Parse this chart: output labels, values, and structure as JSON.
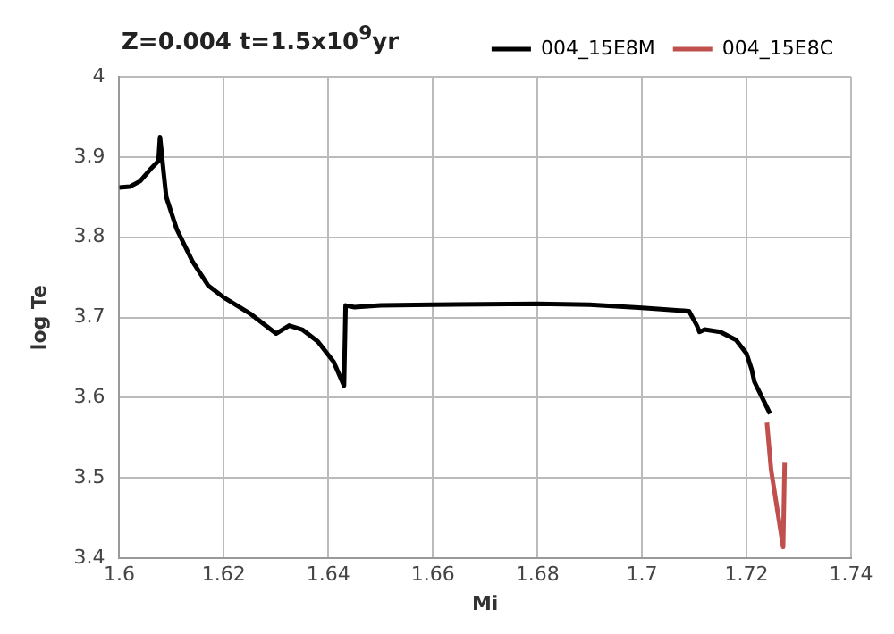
{
  "chart_data": {
    "type": "line",
    "title": "Z=0.004 t=1.5x10$^{9}$yr",
    "xlabel": "Mi",
    "ylabel": "log Te",
    "xlim": [
      1.6,
      1.74
    ],
    "xticks": [
      {
        "value": 1.6,
        "label": "1.6"
      },
      {
        "value": 1.62,
        "label": "1.62"
      },
      {
        "value": 1.64,
        "label": "1.64"
      },
      {
        "value": 1.66,
        "label": "1.66"
      },
      {
        "value": 1.68,
        "label": "1.68"
      },
      {
        "value": 1.7,
        "label": "1.7"
      },
      {
        "value": 1.72,
        "label": "1.72"
      },
      {
        "value": 1.74,
        "label": "1.74"
      }
    ],
    "ylim": [
      3.4,
      4
    ],
    "yticks": [
      3.4,
      3.5,
      3.6,
      3.7,
      3.8,
      3.9,
      4
    ],
    "grid": true,
    "legend": "top right",
    "marker": "none",
    "line_style": "solid",
    "series": [
      {
        "name": "004_15E8M",
        "color": "#000000",
        "x": [
          1.6,
          1.602,
          1.604,
          1.606,
          1.6075,
          1.6078,
          1.6085,
          1.609,
          1.611,
          1.614,
          1.617,
          1.62,
          1.625,
          1.63,
          1.6325,
          1.635,
          1.638,
          1.641,
          1.643,
          1.6433,
          1.645,
          1.65,
          1.66,
          1.68,
          1.69,
          1.7,
          1.709,
          1.7105,
          1.711,
          1.712,
          1.715,
          1.718,
          1.72,
          1.721,
          1.7215,
          1.723,
          1.7245
        ],
        "values": [
          3.862,
          3.863,
          3.87,
          3.885,
          3.895,
          3.925,
          3.88,
          3.85,
          3.81,
          3.77,
          3.74,
          3.725,
          3.705,
          3.68,
          3.69,
          3.685,
          3.67,
          3.645,
          3.615,
          3.715,
          3.713,
          3.715,
          3.716,
          3.717,
          3.716,
          3.712,
          3.708,
          3.69,
          3.682,
          3.685,
          3.682,
          3.672,
          3.655,
          3.635,
          3.62,
          3.6,
          3.58
        ]
      },
      {
        "name": "004_15E8C",
        "color": "#c0504d",
        "x": [
          1.7239,
          1.7247,
          1.727,
          1.7273
        ],
        "values": [
          3.569,
          3.51,
          3.414,
          3.52
        ]
      }
    ]
  }
}
